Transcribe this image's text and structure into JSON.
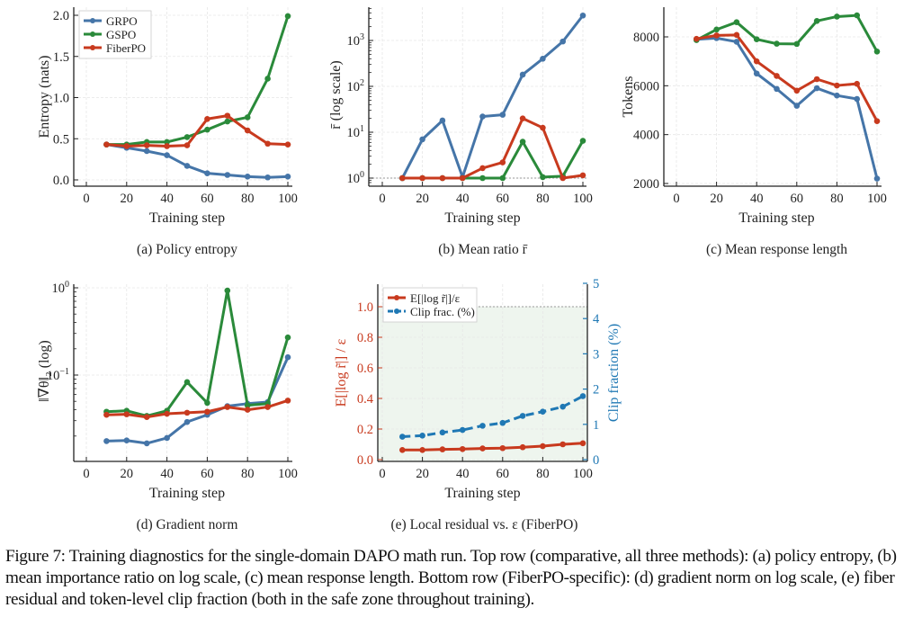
{
  "figure": {
    "caption": "Figure 7: Training diagnostics for the single-domain DAPO math run. Top row (comparative, all three methods): (a) policy entropy, (b) mean importance ratio on log scale, (c) mean response length. Bottom row (FiberPO-specific): (d) gradient norm on log scale, (e) fiber residual and token-level clip fraction (both in the safe zone throughout training)."
  },
  "colors": {
    "GRPO": "#4575a8",
    "GSPO": "#2a8a3a",
    "FiberPO": "#c83a1e",
    "clip": "#1f78b4",
    "left_axis_e": "#c83a1e",
    "right_axis_e": "#1f78b4",
    "safe_zone": "#eef5ee"
  },
  "chart_data": [
    {
      "id": "a",
      "type": "line",
      "subcaption": "(a)  Policy entropy",
      "xlabel": "Training step",
      "ylabel": "Entropy (nats)",
      "xlim": [
        0,
        100
      ],
      "ylim": [
        0,
        2.0
      ],
      "xticks": [
        0,
        20,
        40,
        60,
        80,
        100
      ],
      "yticks": [
        0.0,
        0.5,
        1.0,
        1.5,
        2.0
      ],
      "ytick_labels": [
        "0.0",
        "0.5",
        "1.0",
        "1.5",
        "2.0"
      ],
      "yscale": "linear",
      "grid": true,
      "legend": {
        "placement": "top-left",
        "entries": [
          "GRPO",
          "GSPO",
          "FiberPO"
        ]
      },
      "x": [
        10,
        20,
        30,
        40,
        50,
        60,
        70,
        80,
        90,
        100
      ],
      "series": [
        {
          "name": "GRPO",
          "values": [
            0.43,
            0.39,
            0.35,
            0.3,
            0.17,
            0.08,
            0.06,
            0.04,
            0.03,
            0.04
          ]
        },
        {
          "name": "GSPO",
          "values": [
            0.43,
            0.43,
            0.46,
            0.46,
            0.52,
            0.61,
            0.71,
            0.76,
            1.23,
            1.99
          ]
        },
        {
          "name": "FiberPO",
          "values": [
            0.43,
            0.41,
            0.42,
            0.41,
            0.42,
            0.74,
            0.78,
            0.6,
            0.44,
            0.43
          ]
        }
      ]
    },
    {
      "id": "b",
      "type": "line",
      "subcaption": "(b)  Mean ratio r̄",
      "xlabel": "Training step",
      "ylabel": "r̄  (log scale)",
      "xlim": [
        0,
        100
      ],
      "ylim": [
        0.8,
        5000
      ],
      "yscale": "log",
      "xticks": [
        0,
        20,
        40,
        60,
        80,
        100
      ],
      "yticks": [
        1,
        10,
        100,
        1000
      ],
      "ytick_labels": [
        "10^0",
        "10^1",
        "10^2",
        "10^3"
      ],
      "reference_line": {
        "y": 1,
        "style": "dotted"
      },
      "grid": true,
      "x": [
        10,
        20,
        30,
        40,
        50,
        60,
        70,
        80,
        90,
        100
      ],
      "series": [
        {
          "name": "GRPO",
          "values": [
            1.0,
            7.0,
            18,
            1.05,
            22,
            24,
            180,
            400,
            950,
            3500
          ]
        },
        {
          "name": "GSPO",
          "values": [
            1.0,
            1.0,
            1.0,
            1.0,
            1.0,
            1.0,
            6.2,
            1.05,
            1.1,
            6.5
          ]
        },
        {
          "name": "FiberPO",
          "values": [
            1.0,
            1.0,
            1.0,
            1.0,
            1.65,
            2.2,
            20,
            12.5,
            1.0,
            1.15
          ]
        }
      ]
    },
    {
      "id": "c",
      "type": "line",
      "subcaption": "(c)  Mean response length",
      "xlabel": "Training step",
      "ylabel": "Tokens",
      "xlim": [
        0,
        100
      ],
      "ylim": [
        2000,
        9200
      ],
      "yscale": "linear",
      "xticks": [
        0,
        20,
        40,
        60,
        80,
        100
      ],
      "yticks": [
        2000,
        4000,
        6000,
        8000
      ],
      "ytick_labels": [
        "2000",
        "4000",
        "6000",
        "8000"
      ],
      "grid": true,
      "x": [
        10,
        20,
        30,
        40,
        50,
        60,
        70,
        80,
        90,
        100
      ],
      "series": [
        {
          "name": "GRPO",
          "values": [
            7900,
            7950,
            7800,
            6500,
            5870,
            5180,
            5900,
            5600,
            5460,
            2200
          ]
        },
        {
          "name": "GSPO",
          "values": [
            7870,
            8300,
            8600,
            7900,
            7720,
            7710,
            8650,
            8830,
            8880,
            7400
          ]
        },
        {
          "name": "FiberPO",
          "values": [
            7920,
            8060,
            8080,
            7000,
            6400,
            5800,
            6270,
            6010,
            6080,
            4550
          ]
        }
      ]
    },
    {
      "id": "d",
      "type": "line",
      "subcaption": "(d)  Gradient norm",
      "xlabel": "Training step",
      "ylabel": "‖∇θ‖₂  (log)",
      "xlim": [
        0,
        100
      ],
      "ylim": [
        0.013,
        1.05
      ],
      "yscale": "log",
      "xticks": [
        0,
        20,
        40,
        60,
        80,
        100
      ],
      "yticks": [
        0.1,
        1
      ],
      "ytick_labels": [
        "10^-1",
        "10^0"
      ],
      "grid": true,
      "x": [
        10,
        20,
        30,
        40,
        50,
        60,
        70,
        80,
        90,
        100
      ],
      "series": [
        {
          "name": "GRPO",
          "values": [
            0.0175,
            0.0178,
            0.0165,
            0.019,
            0.029,
            0.035,
            0.044,
            0.047,
            0.049,
            0.16
          ]
        },
        {
          "name": "GSPO",
          "values": [
            0.038,
            0.039,
            0.034,
            0.039,
            0.083,
            0.048,
            0.93,
            0.045,
            0.047,
            0.27
          ]
        },
        {
          "name": "FiberPO",
          "values": [
            0.035,
            0.0355,
            0.033,
            0.036,
            0.037,
            0.038,
            0.043,
            0.04,
            0.043,
            0.051
          ]
        }
      ]
    },
    {
      "id": "e",
      "type": "line",
      "subcaption": "(e)  Local residual vs. ε  (FiberPO)",
      "xlabel": "Training step",
      "ylabel_left": "E[|log r̃|] / ε",
      "ylabel_right": "Clip fraction (%)",
      "xlim": [
        0,
        100
      ],
      "ylim_left": [
        0,
        1.15
      ],
      "ylim_right": [
        0,
        5
      ],
      "xticks": [
        0,
        20,
        40,
        60,
        80,
        100
      ],
      "yticks_left": [
        0.0,
        0.2,
        0.4,
        0.6,
        0.8,
        1.0
      ],
      "ytick_labels_left": [
        "0.0",
        "0.2",
        "0.4",
        "0.6",
        "0.8",
        "1.0"
      ],
      "yticks_right": [
        0,
        1,
        2,
        3,
        4,
        5
      ],
      "ytick_labels_right": [
        "0",
        "1",
        "2",
        "3",
        "4",
        "5"
      ],
      "reference_line": {
        "y": 1.0,
        "style": "dotted"
      },
      "safe_zone": [
        0,
        1.0
      ],
      "grid": true,
      "legend": {
        "placement": "top-left",
        "entries": [
          "E[|log r̃|]/ε",
          "Clip frac. (%)"
        ]
      },
      "x": [
        10,
        20,
        30,
        40,
        50,
        60,
        70,
        80,
        90,
        100
      ],
      "series": [
        {
          "name": "E[|log r̃|]/ε",
          "axis": "left",
          "style": "solid",
          "values": [
            0.063,
            0.063,
            0.067,
            0.069,
            0.073,
            0.075,
            0.081,
            0.088,
            0.1,
            0.107
          ]
        },
        {
          "name": "Clip frac. (%)",
          "axis": "right",
          "style": "dashed",
          "values": [
            0.65,
            0.68,
            0.77,
            0.84,
            0.96,
            1.04,
            1.24,
            1.36,
            1.5,
            1.8
          ]
        }
      ]
    }
  ]
}
